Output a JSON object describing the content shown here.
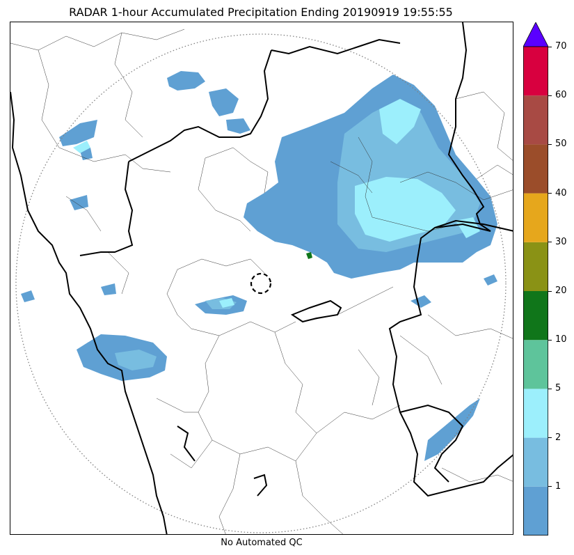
{
  "title": "RADAR 1-hour Accumulated Precipitation Ending 20190919 19:55:55",
  "footer": "No Automated QC",
  "colorbar": {
    "levels": [
      {
        "label": "",
        "color": "#5fa0d3"
      },
      {
        "label": "1",
        "color": "#78bde0"
      },
      {
        "label": "2",
        "color": "#9ceffc"
      },
      {
        "label": "5",
        "color": "#5ec49b"
      },
      {
        "label": "10",
        "color": "#10761a"
      },
      {
        "label": "20",
        "color": "#8a9215"
      },
      {
        "label": "30",
        "color": "#e6a71c"
      },
      {
        "label": "40",
        "color": "#9b4d2a"
      },
      {
        "label": "50",
        "color": "#a84a44"
      },
      {
        "label": "60",
        "color": "#d8003f"
      },
      {
        "label": "70",
        "color": "#5a00ff"
      }
    ],
    "extend_color": "#5a00ff"
  }
}
